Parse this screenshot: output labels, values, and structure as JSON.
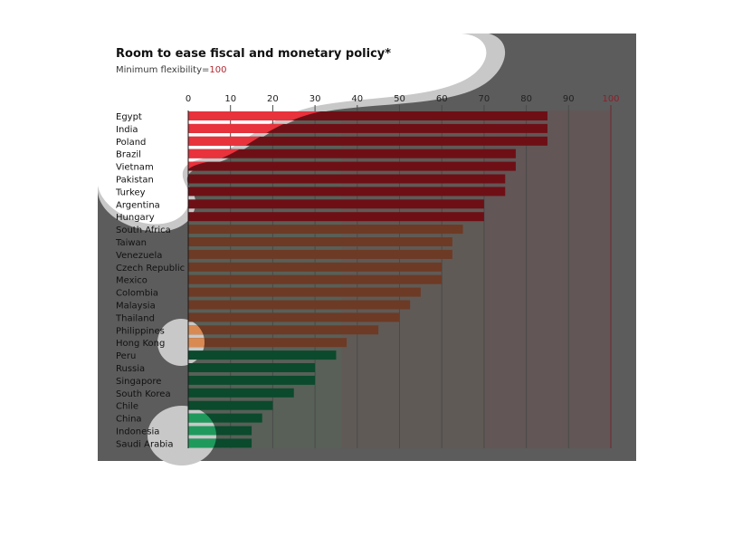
{
  "chart_data": {
    "type": "bar",
    "orientation": "horizontal",
    "title": "Room to ease fiscal and monetary policy*",
    "subtitle_prefix": "Minimum flexibility=",
    "subtitle_value": "100",
    "xlim": [
      0,
      100
    ],
    "xticks": [
      "0",
      "10",
      "20",
      "30",
      "40",
      "50",
      "60",
      "70",
      "80",
      "90",
      "100"
    ],
    "grid": true,
    "categories": [
      "Egypt",
      "India",
      "Poland",
      "Brazil",
      "Vietnam",
      "Pakistan",
      "Turkey",
      "Argentina",
      "Hungary",
      "South Africa",
      "Taiwan",
      "Venezuela",
      "Czech Republic",
      "Mexico",
      "Colombia",
      "Malaysia",
      "Thailand",
      "Philippines",
      "Hong Kong",
      "Peru",
      "Russia",
      "Singapore",
      "South Korea",
      "Chile",
      "China",
      "Indonesia",
      "Saudi Arabia"
    ],
    "values": [
      85,
      85,
      85,
      77.5,
      77.5,
      75,
      75,
      70,
      70,
      65,
      62.5,
      62.5,
      60,
      60,
      55,
      52.5,
      50,
      45,
      37.5,
      35,
      30,
      30,
      25,
      20,
      17.5,
      15,
      15
    ],
    "colors": {
      "red_group": "#6e0f16",
      "brown_group": "#6d3a25",
      "green_group": "#0b4a2c",
      "red_highlight": "#e8323c",
      "brown_highlight": "#d98a52",
      "green_highlight": "#1f9a5c",
      "overlay": "#5c5c5c",
      "blob": "#c8c8c8"
    },
    "groups": {
      "red": [
        0,
        8
      ],
      "brown": [
        9,
        18
      ],
      "green": [
        19,
        26
      ]
    }
  }
}
